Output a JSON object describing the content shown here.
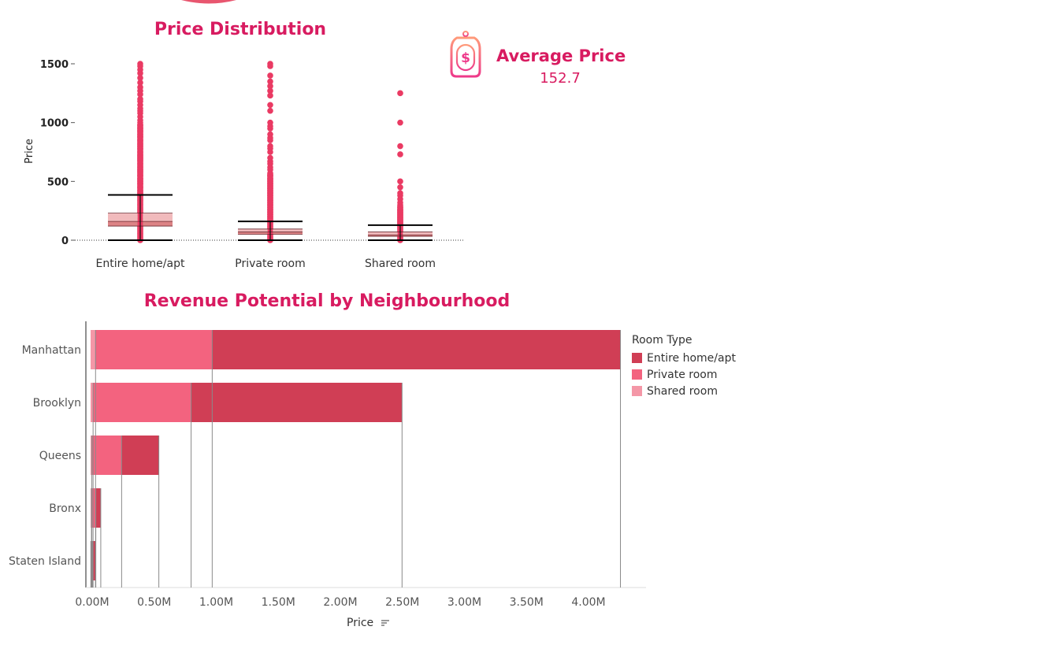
{
  "colors": {
    "accent": "#d81b60",
    "entire": "#d03e55",
    "private": "#f3637f",
    "shared": "#f497a7",
    "point": "#ea3a63",
    "box_upper": "#f0b3b5",
    "box_lower": "#d87578",
    "axis_text": "#555555",
    "gridline": "#8a8a8a"
  },
  "avg_card": {
    "title": "Average Price",
    "value": "152.7",
    "icon": "money-tag-icon"
  },
  "chart_data": [
    {
      "type": "box",
      "title": "Price Distribution",
      "ylabel": "Price",
      "ylim": [
        0,
        1500
      ],
      "yticks": [
        0,
        500,
        1000,
        1500
      ],
      "ytick_labels": [
        "0",
        "500",
        "1000",
        "1500"
      ],
      "categories": [
        "Entire home/apt",
        "Private room",
        "Shared room"
      ],
      "boxes": [
        {
          "name": "Entire home/apt",
          "lower_whisker": 0,
          "q1": 120,
          "median": 160,
          "q3": 230,
          "upper_whisker": 385
        },
        {
          "name": "Private room",
          "lower_whisker": 0,
          "q1": 50,
          "median": 70,
          "q3": 95,
          "upper_whisker": 160
        },
        {
          "name": "Shared room",
          "lower_whisker": 0,
          "q1": 33,
          "median": 45,
          "q3": 70,
          "upper_whisker": 128
        }
      ],
      "outliers": [
        {
          "category": "Entire home/apt",
          "values": [
            1500,
            1480,
            1450,
            1420,
            1380,
            1340,
            1300,
            1270,
            1240,
            1200,
            1180,
            1150,
            1120,
            1100,
            1080,
            1050,
            1020,
            1000,
            980,
            950,
            930,
            900,
            880,
            850,
            820,
            800,
            780,
            750,
            720,
            700,
            680,
            650,
            620,
            600,
            580,
            550,
            520,
            500,
            480,
            450,
            420,
            400
          ]
        },
        {
          "category": "Private room",
          "values": [
            1500,
            1480,
            1400,
            1350,
            1310,
            1270,
            1230,
            1150,
            1100,
            1000,
            970,
            950,
            900,
            870,
            850,
            800,
            780,
            750,
            700,
            670,
            650,
            620,
            600,
            570,
            550,
            520,
            500,
            480,
            460,
            440,
            420,
            400,
            380,
            360,
            340,
            320,
            300,
            280,
            260,
            240,
            220,
            200,
            180
          ]
        },
        {
          "category": "Shared room",
          "values": [
            1250,
            1000,
            800,
            730,
            500,
            450,
            400,
            380,
            350,
            320,
            300,
            280,
            260,
            250,
            240,
            230,
            220,
            210,
            200,
            190,
            180,
            170,
            160,
            150,
            140
          ]
        }
      ],
      "reference_line": 0
    },
    {
      "type": "bar",
      "orientation": "horizontal",
      "stacked": true,
      "title": "Revenue Potential by Neighbourhood",
      "xlabel": "Price",
      "categories": [
        "Manhattan",
        "Brooklyn",
        "Queens",
        "Bronx",
        "Staten Island"
      ],
      "series": [
        {
          "name": "Shared room",
          "color": "#f497a7",
          "values": [
            0.04,
            0.02,
            0.01,
            0.007,
            0.002
          ]
        },
        {
          "name": "Private room",
          "color": "#f3637f",
          "values": [
            0.94,
            0.79,
            0.24,
            0.035,
            0.013
          ]
        },
        {
          "name": "Entire home/apt",
          "color": "#d03e55",
          "values": [
            3.29,
            1.7,
            0.3,
            0.04,
            0.025
          ]
        }
      ],
      "totals": [
        4.27,
        2.51,
        0.55,
        0.082,
        0.04
      ],
      "xlim": [
        -0.13,
        4.5
      ],
      "xticks": [
        0,
        0.5,
        1.0,
        1.5,
        2.0,
        2.5,
        3.0,
        3.5,
        4.0
      ],
      "xtick_labels": [
        "0.00M",
        "0.50M",
        "1.00M",
        "1.50M",
        "2.00M",
        "2.50M",
        "3.00M",
        "3.50M",
        "4.00M"
      ],
      "legend": {
        "title": "Room Type",
        "position": "right",
        "items": [
          "Entire home/apt",
          "Private room",
          "Shared room"
        ]
      }
    }
  ]
}
